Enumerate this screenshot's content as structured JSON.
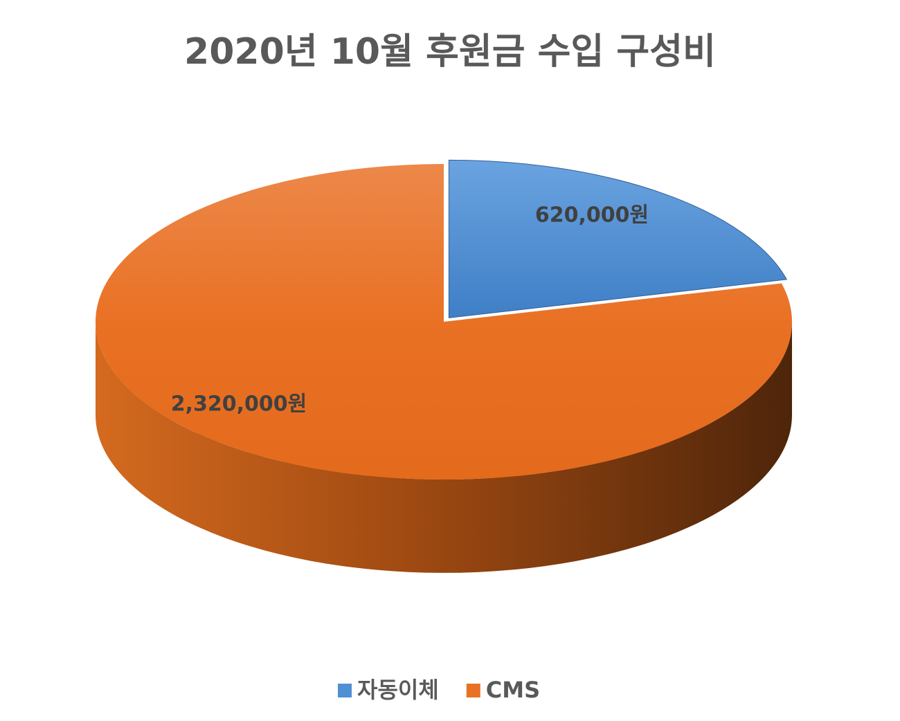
{
  "chart_data": {
    "type": "pie3d",
    "title": "2020년 10월 후원금 수입 구성비",
    "categories": [
      "자동이체",
      "CMS"
    ],
    "values": [
      620000,
      2320000
    ],
    "value_labels": [
      "620,000원",
      "2,320,000원"
    ],
    "colors": [
      "#4f8fd4",
      "#e97124"
    ],
    "legend": "bottom"
  }
}
